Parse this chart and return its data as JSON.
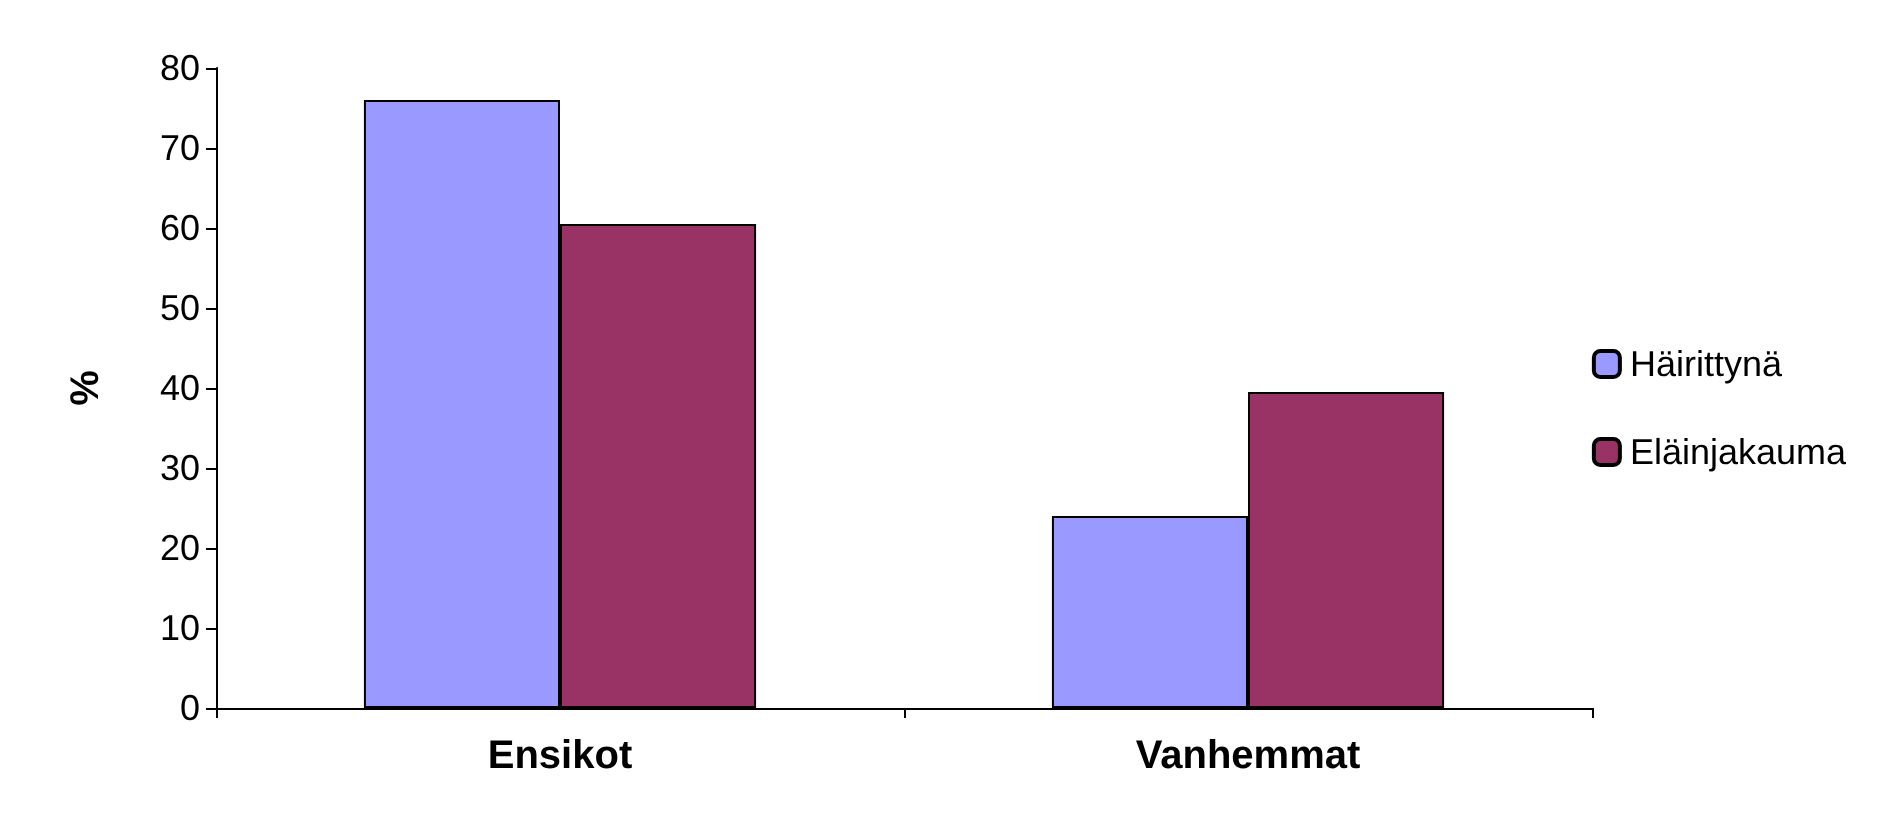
{
  "chart_data": {
    "type": "bar",
    "ylabel": "%",
    "categories": [
      "Ensikot",
      "Vanhemmat"
    ],
    "series": [
      {
        "name": "Häirittynä",
        "color": "#9999ff",
        "values": [
          76,
          24
        ]
      },
      {
        "name": "Eläinjakauma",
        "color": "#993366",
        "values": [
          60.5,
          39.5
        ]
      }
    ],
    "ylim": [
      0,
      80
    ],
    "yticks": [
      0,
      10,
      20,
      30,
      40,
      50,
      60,
      70,
      80
    ],
    "grid": false,
    "legend": "right"
  }
}
